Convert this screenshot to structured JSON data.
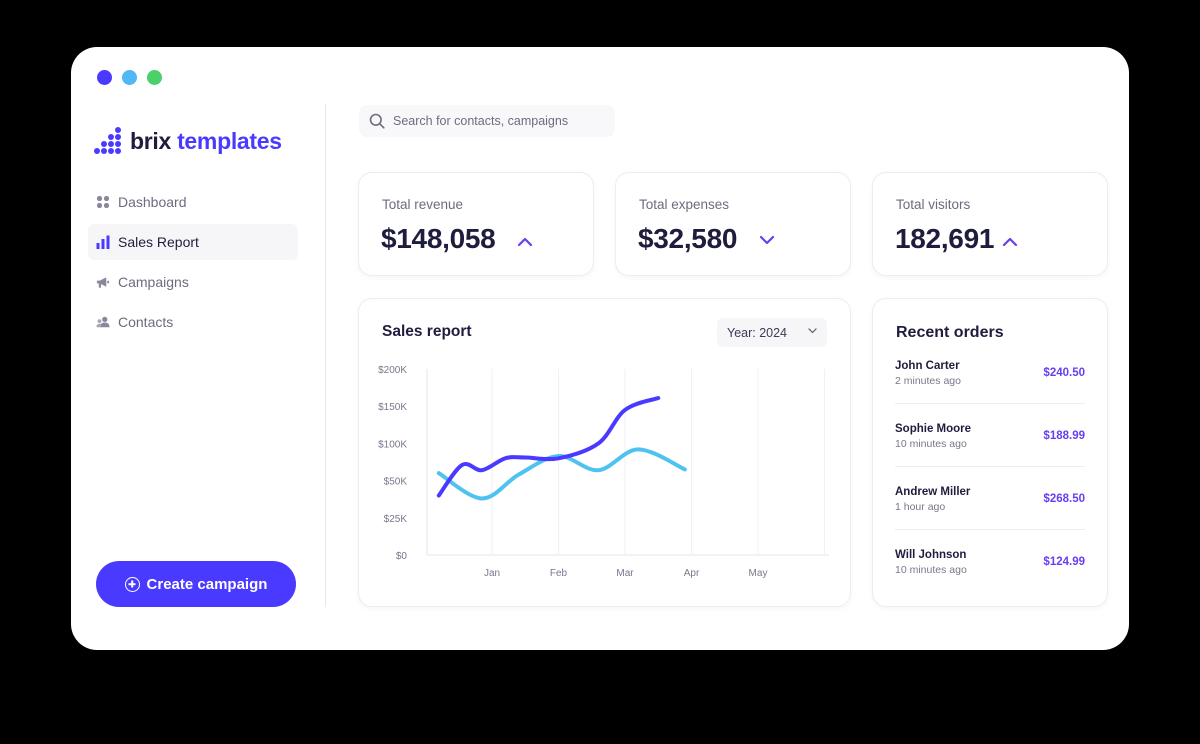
{
  "window": {
    "traffic_lights": [
      "#4a3aff",
      "#4fb8f5",
      "#4cd06a"
    ]
  },
  "brand": {
    "part1": "brix",
    "part2": "templates",
    "color": "#4a3aff"
  },
  "sidebar": {
    "items": [
      {
        "label": "Dashboard",
        "icon": "dashboard-icon"
      },
      {
        "label": "Sales Report",
        "icon": "bar-chart-icon",
        "active": true
      },
      {
        "label": "Campaigns",
        "icon": "megaphone-icon"
      },
      {
        "label": "Contacts",
        "icon": "contacts-icon"
      }
    ],
    "cta": "Create campaign"
  },
  "search": {
    "placeholder": "Search for contacts, campaigns"
  },
  "stats": [
    {
      "label": "Total revenue",
      "value": "$148,058",
      "trend": "up"
    },
    {
      "label": "Total expenses",
      "value": "$32,580",
      "trend": "down"
    },
    {
      "label": "Total visitors",
      "value": "182,691",
      "trend": "up"
    }
  ],
  "sales_report": {
    "title": "Sales report",
    "year_select": "Year: 2024"
  },
  "chart_data": {
    "type": "line",
    "title": "Sales report",
    "x": [
      "Jan",
      "Feb",
      "Mar",
      "Apr",
      "May"
    ],
    "yticks": [
      "$0",
      "$25K",
      "$50K",
      "$100K",
      "$150K",
      "$200K"
    ],
    "ylim": [
      0,
      200000
    ],
    "grid": "vertical",
    "series": [
      {
        "color": "#4a3aff",
        "points": [
          [
            0.2,
            40
          ],
          [
            0.55,
            71
          ],
          [
            0.85,
            64
          ],
          [
            1.2,
            80
          ],
          [
            1.5,
            81
          ],
          [
            2.0,
            80
          ],
          [
            2.6,
            100
          ],
          [
            3.0,
            145
          ],
          [
            3.5,
            161
          ]
        ]
      },
      {
        "color": "#4fc3f0",
        "points": [
          [
            0.2,
            60
          ],
          [
            0.85,
            38
          ],
          [
            1.4,
            58
          ],
          [
            2.0,
            83
          ],
          [
            2.6,
            64
          ],
          [
            3.2,
            92
          ],
          [
            3.9,
            65
          ]
        ]
      }
    ]
  },
  "recent_orders": {
    "title": "Recent orders",
    "orders": [
      {
        "name": "John Carter",
        "time": "2 minutes ago",
        "amount": "$240.50"
      },
      {
        "name": "Sophie Moore",
        "time": "10 minutes ago",
        "amount": "$188.99"
      },
      {
        "name": "Andrew Miller",
        "time": "1 hour ago",
        "amount": "$268.50"
      },
      {
        "name": "Will Johnson",
        "time": "10 minutes ago",
        "amount": "$124.99"
      }
    ]
  }
}
